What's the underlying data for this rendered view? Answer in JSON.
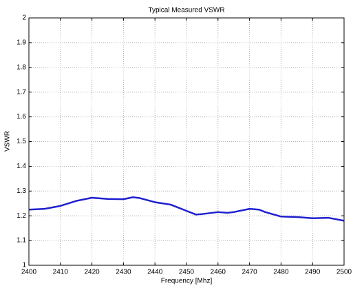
{
  "chart_data": {
    "type": "line",
    "title": "Typical Measured VSWR",
    "x_label": "Frequency [Mhz]",
    "y_label": "VSWR",
    "x": [
      2400,
      2405,
      2410,
      2415,
      2420,
      2425,
      2430,
      2433,
      2435,
      2440,
      2445,
      2450,
      2453,
      2455,
      2460,
      2463,
      2465,
      2470,
      2473,
      2475,
      2480,
      2485,
      2490,
      2495,
      2500
    ],
    "values": [
      1.225,
      1.228,
      1.24,
      1.26,
      1.273,
      1.268,
      1.267,
      1.275,
      1.272,
      1.255,
      1.245,
      1.22,
      1.205,
      1.207,
      1.215,
      1.212,
      1.215,
      1.228,
      1.225,
      1.215,
      1.197,
      1.195,
      1.19,
      1.192,
      1.18
    ],
    "color": "#1f1fd0",
    "xlim": [
      2400,
      2500
    ],
    "xticks": [
      2400,
      2410,
      2420,
      2430,
      2440,
      2450,
      2460,
      2470,
      2480,
      2490,
      2500
    ],
    "ylim": [
      1,
      2
    ],
    "yticks": [
      1,
      1.1,
      1.2,
      1.3,
      1.4,
      1.5,
      1.6,
      1.7,
      1.8,
      1.9,
      2
    ],
    "grid": true
  }
}
